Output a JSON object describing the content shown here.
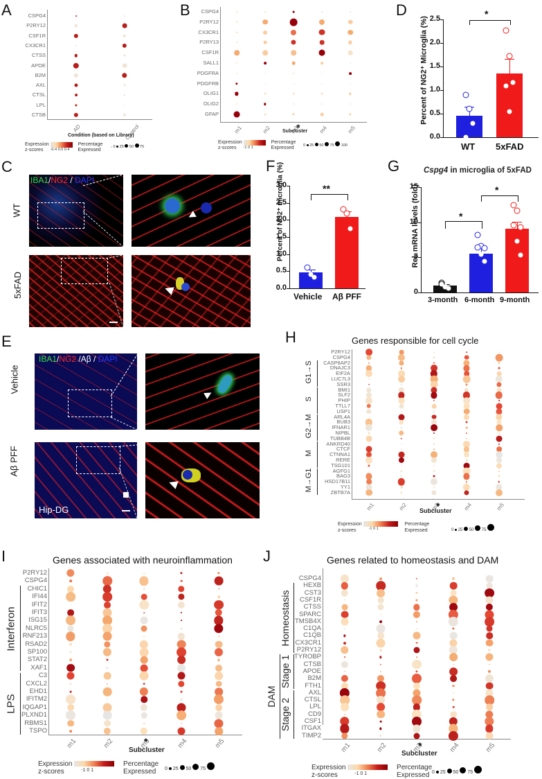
{
  "panels": {
    "A": {
      "letter": "A",
      "genes": [
        "CSPG4",
        "P2RY12",
        "CSF1R",
        "CX3CR1",
        "CTSS",
        "APOE",
        "B2M",
        "AXL",
        "CTSL",
        "LPL",
        "CTSB"
      ],
      "conditions": [
        "AD",
        "Control"
      ],
      "xlabel": "Condition (based on Library)",
      "legend": {
        "expression_label_1": "Expression",
        "expression_label_2": "z-scores",
        "expression_ticks": "-0.4  0.0  0.4",
        "pct_label_1": "Percentage",
        "pct_label_2": "Expressed",
        "pct_ticks": [
          "0",
          "25",
          "50",
          "75"
        ]
      }
    },
    "B": {
      "letter": "B",
      "genes": [
        "CSPG4",
        "P2RY12",
        "CX3CR1",
        "P2RY13",
        "CSF1R",
        "SALL1",
        "PDGFRA",
        "PDGFRB",
        "OLIG1",
        "OLIG2",
        "GFAP"
      ],
      "subclusters": [
        "m1",
        "m2",
        "m3",
        "m4",
        "m5"
      ],
      "xlabel": "Subcluster",
      "star": "*",
      "legend": {
        "expression_label_1": "Expression",
        "expression_label_2": "z-scores",
        "expression_ticks": "-1   0   1",
        "pct_label_1": "Percentage",
        "pct_label_2": "Expressed",
        "pct_ticks": [
          "0",
          "25",
          "50",
          "75",
          "100"
        ]
      }
    },
    "C": {
      "letter": "C",
      "stain_label": {
        "iba1": "IBA1",
        "sep1": "/",
        "ng2": "NG2",
        "sep2": " / ",
        "dapi": "DAPI"
      },
      "rows": [
        "WT",
        "5xFAD"
      ]
    },
    "D": {
      "letter": "D"
    },
    "E": {
      "letter": "E",
      "stain_label": {
        "iba1": "IBA1",
        "sep1": "/",
        "ng2": "NG2",
        "sep2": " /Aβ / ",
        "dapi": "DAPI"
      },
      "rows": [
        "Vehicle",
        "Aβ PFF"
      ],
      "region_label": "Hip-DG"
    },
    "F": {
      "letter": "F"
    },
    "G": {
      "letter": "G",
      "title_italic": "Cspg4",
      "title_rest": " in microglia of 5xFAD"
    },
    "H": {
      "letter": "H",
      "title": "Genes responsible for cell cycle",
      "genes": [
        "P2RY12",
        "CSPG4",
        "CASP8AP2",
        "DNAJC3",
        "EIF2A",
        "LUC7L3",
        "SSR3",
        "BMI1",
        "SLF2",
        "PHIP",
        "TTLL7",
        "USP1",
        "ARL4A",
        "BUB3",
        "IFNAR1",
        "NIPBL",
        "TUBB4B",
        "ANKRD40",
        "CTCF",
        "CTNNA1",
        "RERE",
        "TSG101",
        "AGFG1",
        "BAG3",
        "HSD17B11",
        "YY1",
        "ZBTB7A"
      ],
      "groups": [
        {
          "label": "G1→S",
          "from": 2,
          "to": 6
        },
        {
          "label": "S",
          "from": 7,
          "to": 11
        },
        {
          "label": "G2→M",
          "from": 12,
          "to": 16
        },
        {
          "label": "M",
          "from": 17,
          "to": 21
        },
        {
          "label": "M→G1",
          "from": 22,
          "to": 26
        }
      ],
      "subclusters": [
        "m1",
        "m2",
        "m3",
        "m4",
        "m5"
      ],
      "xlabel": "Subcluster",
      "star": "*",
      "legend": {
        "expression_label_1": "Expression",
        "expression_label_2": "z-scores",
        "expression_ticks": "-1   0   1",
        "pct_label_1": "Percentage",
        "pct_label_2": "Expressed",
        "pct_ticks": [
          "0",
          "25",
          "50",
          "75"
        ]
      }
    },
    "I": {
      "letter": "I",
      "title": "Genes associated with neuroinflammation",
      "genes": [
        "P2RY12",
        "CSPG4",
        "CHIC1",
        "IFI44",
        "IFIT2",
        "IFIT3",
        "ISG15",
        "NLRC5",
        "RNF213",
        "RSAD2",
        "SP100",
        "STAT2",
        "XAF1",
        "C3",
        "CXCL2",
        "EHD1",
        "IFITM2",
        "IQGAP1",
        "PLXND1",
        "RBMS1",
        "TSPO"
      ],
      "groups": [
        {
          "label": "Interferon",
          "from": 2,
          "to": 12
        },
        {
          "label": "LPS",
          "from": 13,
          "to": 20
        }
      ],
      "subclusters": [
        "m1",
        "m2",
        "m3",
        "m4",
        "m5"
      ],
      "xlabel": "Subcluster",
      "star": "*",
      "legend": {
        "expression_label_1": "Expression",
        "expression_label_2": "z-scores",
        "expression_ticks": "-1   0   1",
        "pct_label_1": "Percentage",
        "pct_label_2": "Expressed",
        "pct_ticks": [
          "0",
          "25",
          "50",
          "75"
        ]
      }
    },
    "J": {
      "letter": "J",
      "title": "Genes related to homeostasis and DAM",
      "genes": [
        "CSPG4",
        "HEXB",
        "CST3",
        "CSF1R",
        "CTSS",
        "SPARC",
        "TMSB4X",
        "C1QA",
        "C1QB",
        "CX3CR1",
        "P2RY12",
        "TYROBP",
        "CTSB",
        "APOE",
        "B2M",
        "FTH1",
        "AXL",
        "CTSL",
        "LPL",
        "CD9",
        "CSF1",
        "ITGAX",
        "TIMP2"
      ],
      "groups": [
        {
          "label": "Homeostasis",
          "from": 1,
          "to": 10
        },
        {
          "label": "Stage 1",
          "from": 11,
          "to": 15
        },
        {
          "label": "Stage 2",
          "from": 16,
          "to": 22
        }
      ],
      "outer_group": {
        "label": "DAM",
        "from": 11,
        "to": 22
      },
      "subclusters": [
        "m1",
        "m2",
        "m3",
        "m4",
        "m5"
      ],
      "xlabel": "Subcluster",
      "star": "*",
      "legend": {
        "expression_label_1": "Expression",
        "expression_label_2": "z-scores",
        "expression_ticks": "-1   0   1",
        "pct_label_1": "Percentage",
        "pct_label_2": "Expressed",
        "pct_ticks": [
          "0",
          "25",
          "50",
          "75"
        ]
      }
    }
  },
  "chart_data": [
    {
      "panel": "A",
      "type": "scatter",
      "subtype": "dotplot",
      "title": "",
      "xlabel": "Condition (based on Library)",
      "ylabel": "",
      "categories": [
        "AD",
        "Control"
      ],
      "genes": [
        "CSPG4",
        "P2RY12",
        "CSF1R",
        "CX3CR1",
        "CTSS",
        "APOE",
        "B2M",
        "AXL",
        "CTSL",
        "LPL",
        "CTSB"
      ],
      "zscore": [
        [
          0.4,
          -0.4
        ],
        [
          -0.4,
          0.4
        ],
        [
          0.4,
          -0.4
        ],
        [
          -0.4,
          0.4
        ],
        [
          0.4,
          -0.4
        ],
        [
          0.4,
          -0.4
        ],
        [
          -0.4,
          0.4
        ],
        [
          0.4,
          -0.4
        ],
        [
          0.4,
          -0.4
        ],
        [
          0.4,
          -0.4
        ],
        [
          0.4,
          -0.4
        ]
      ],
      "pct_expressed": [
        [
          3,
          2
        ],
        [
          20,
          45
        ],
        [
          40,
          20
        ],
        [
          5,
          40
        ],
        [
          20,
          10
        ],
        [
          70,
          45
        ],
        [
          40,
          55
        ],
        [
          25,
          10
        ],
        [
          15,
          5
        ],
        [
          10,
          2
        ],
        [
          40,
          20
        ]
      ]
    },
    {
      "panel": "B",
      "type": "scatter",
      "subtype": "dotplot",
      "xlabel": "Subcluster",
      "categories": [
        "m1",
        "m2",
        "m3",
        "m4",
        "m5"
      ],
      "genes": [
        "CSPG4",
        "P2RY12",
        "CX3CR1",
        "P2RY13",
        "CSF1R",
        "SALL1",
        "PDGFRA",
        "PDGFRB",
        "OLIG1",
        "OLIG2",
        "GFAP"
      ],
      "zscore": [
        [
          -1,
          -1,
          1.5,
          -1,
          -1
        ],
        [
          -1,
          0,
          1.5,
          0,
          -0.5
        ],
        [
          -1,
          -0.5,
          0.5,
          1,
          0
        ],
        [
          -1,
          -0.5,
          1,
          1,
          -0.5
        ],
        [
          0,
          -0.5,
          -0.3,
          1.5,
          -1
        ],
        [
          -1,
          1.5,
          0,
          -0.5,
          -1
        ],
        [
          -1,
          -1,
          -1,
          -1,
          1.5
        ],
        [
          1.5,
          -1,
          -1,
          -1,
          -1
        ],
        [
          1.5,
          -1,
          -1,
          -1,
          -0.5
        ],
        [
          -1,
          1.5,
          -1,
          -1,
          -1
        ],
        [
          1.5,
          -1,
          -0.5,
          -0.5,
          -0.5
        ]
      ],
      "pct_expressed": [
        [
          0,
          0,
          5,
          0,
          0
        ],
        [
          5,
          40,
          80,
          45,
          30
        ],
        [
          5,
          25,
          45,
          55,
          40
        ],
        [
          0,
          15,
          35,
          30,
          20
        ],
        [
          40,
          40,
          40,
          55,
          30
        ],
        [
          3,
          10,
          15,
          10,
          3
        ],
        [
          3,
          0,
          3,
          0,
          10
        ],
        [
          8,
          0,
          0,
          0,
          0
        ],
        [
          20,
          5,
          5,
          5,
          8
        ],
        [
          3,
          8,
          3,
          0,
          3
        ],
        [
          55,
          5,
          8,
          15,
          8
        ]
      ]
    },
    {
      "panel": "D",
      "type": "bar",
      "categories": [
        "WT",
        "5xFAD"
      ],
      "values": [
        0.45,
        1.36
      ],
      "errors": [
        0.2,
        0.3
      ],
      "points": [
        [
          0.9,
          0.61,
          0.29,
          0.0
        ],
        [
          2.27,
          1.72,
          1.16,
          1.09,
          0.55
        ]
      ],
      "colors": [
        "#1f1fe0",
        "#f01a1a"
      ],
      "ylabel": "Percent of NG2⁺ Microglia (%)",
      "ylim": [
        0,
        2.5
      ],
      "yticks": [
        "0.0",
        "0.5",
        "1.0",
        "1.5",
        "2.0",
        "2.5"
      ],
      "significance": "*"
    },
    {
      "panel": "F",
      "type": "bar",
      "categories": [
        "Vehicle",
        "Aβ PFF"
      ],
      "values": [
        0.46,
        2.08
      ],
      "errors": [
        0.08,
        0.17
      ],
      "points": [
        [
          0.6,
          0.4,
          0.33
        ],
        [
          2.32,
          2.18,
          1.75
        ]
      ],
      "colors": [
        "#1f1fe0",
        "#f01a1a"
      ],
      "ylabel": "Percent of NG2⁺ microglia (%)",
      "ylim": [
        0,
        3.0
      ],
      "yticks": [
        "0.0",
        "0.5",
        "1.0",
        "1.5",
        "2.0",
        "2.5",
        "3.0"
      ],
      "significance": "**"
    },
    {
      "panel": "G",
      "type": "bar",
      "title": "Cspg4 in microglia of 5xFAD",
      "categories": [
        "3-month",
        "6-month",
        "9-month"
      ],
      "values": [
        1.0,
        5.5,
        9.1
      ],
      "errors": [
        0.2,
        0.8,
        1.0
      ],
      "points": [
        [
          1.4,
          0.9,
          0.6,
          1.2,
          0.8
        ],
        [
          8.2,
          6.6,
          6.3,
          6.4,
          5.4,
          4.4
        ],
        [
          12.4,
          11.6,
          9.3,
          9.6,
          7.3,
          5.3
        ]
      ],
      "colors": [
        "#111111",
        "#1f1fe0",
        "#f01a1a"
      ],
      "ylabel": "Rel. mRNA levels (fold)",
      "ylim": [
        0,
        15
      ],
      "yticks": [
        "0",
        "5",
        "10",
        "15"
      ],
      "significance": [
        {
          "pair": [
            "3-month",
            "6-month"
          ],
          "label": "*"
        },
        {
          "pair": [
            "6-month",
            "9-month"
          ],
          "label": "*"
        }
      ]
    },
    {
      "panel": "H",
      "type": "scatter",
      "subtype": "dotplot",
      "title": "Genes responsible for cell cycle",
      "xlabel": "Subcluster",
      "categories": [
        "m1",
        "m2",
        "m3",
        "m4",
        "m5"
      ],
      "genes": [
        "P2RY12",
        "CSPG4",
        "CASP8AP2",
        "DNAJC3",
        "EIF2A",
        "LUC7L3",
        "SSR3",
        "BMI1",
        "SLF2",
        "PHIP",
        "TTLL7",
        "USP1",
        "ARL4A",
        "BUB3",
        "IFNAR1",
        "NIPBL",
        "TUBB4B",
        "ANKRD40",
        "CTCF",
        "CTNNA1",
        "RERE",
        "TSG101",
        "AGFG1",
        "BAG3",
        "HSD17B11",
        "YY1",
        "ZBTB7A"
      ]
    },
    {
      "panel": "I",
      "type": "scatter",
      "subtype": "dotplot",
      "title": "Genes associated with neuroinflammation",
      "xlabel": "Subcluster",
      "categories": [
        "m1",
        "m2",
        "m3",
        "m4",
        "m5"
      ],
      "genes": [
        "P2RY12",
        "CSPG4",
        "CHIC1",
        "IFI44",
        "IFIT2",
        "IFIT3",
        "ISG15",
        "NLRC5",
        "RNF213",
        "RSAD2",
        "SP100",
        "STAT2",
        "XAF1",
        "C3",
        "CXCL2",
        "EHD1",
        "IFITM2",
        "IQGAP1",
        "PLXND1",
        "RBMS1",
        "TSPO"
      ]
    },
    {
      "panel": "J",
      "type": "scatter",
      "subtype": "dotplot",
      "title": "Genes related to homeostasis and DAM",
      "xlabel": "Subcluster",
      "categories": [
        "m1",
        "m2",
        "m3",
        "m4",
        "m5"
      ],
      "genes": [
        "CSPG4",
        "HEXB",
        "CST3",
        "CSF1R",
        "CTSS",
        "SPARC",
        "TMSB4X",
        "C1QA",
        "C1QB",
        "CX3CR1",
        "P2RY12",
        "TYROBP",
        "CTSB",
        "APOE",
        "B2M",
        "FTH1",
        "AXL",
        "CTSL",
        "LPL",
        "CD9",
        "CSF1",
        "ITGAX",
        "TIMP2"
      ]
    }
  ]
}
